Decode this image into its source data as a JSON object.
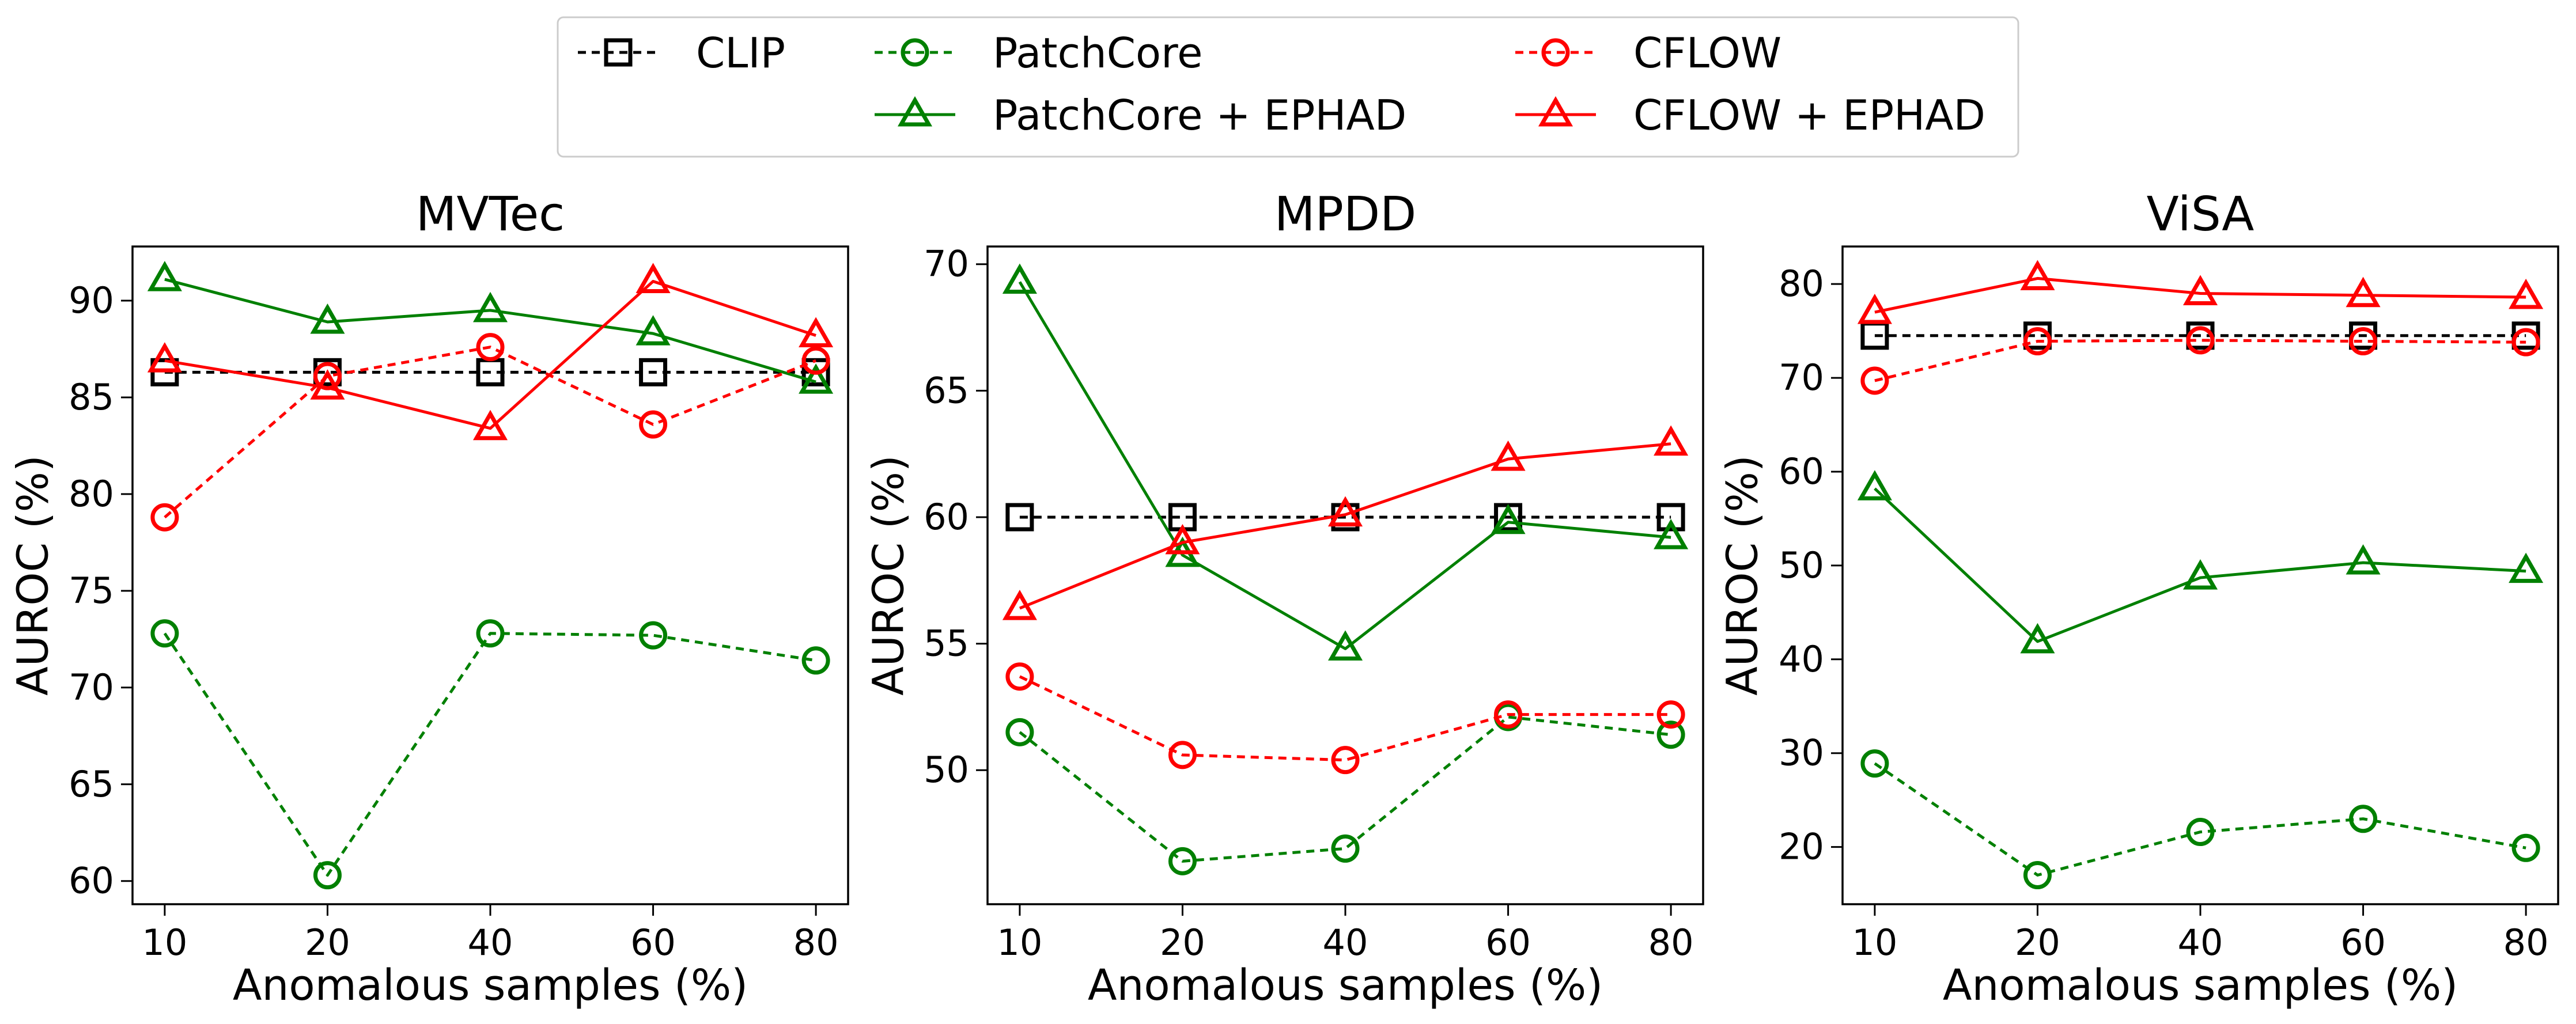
{
  "chart_data": {
    "type": "line",
    "x": [
      "10",
      "20",
      "40",
      "60",
      "80"
    ],
    "xlabel": "Anomalous samples (%)",
    "ylabel": "AUROC (%)",
    "series_styles": [
      {
        "name": "CLIP",
        "color": "#000000",
        "dashed": true,
        "marker": "square"
      },
      {
        "name": "PatchCore",
        "color": "#008000",
        "dashed": true,
        "marker": "circle"
      },
      {
        "name": "PatchCore + EPHAD",
        "color": "#008000",
        "dashed": false,
        "marker": "triangle"
      },
      {
        "name": "CFLOW",
        "color": "#ff0000",
        "dashed": true,
        "marker": "circle"
      },
      {
        "name": "CFLOW + EPHAD",
        "color": "#ff0000",
        "dashed": false,
        "marker": "triangle"
      }
    ],
    "legend": {
      "position": "top-center",
      "columns": [
        [
          "CLIP"
        ],
        [
          "PatchCore",
          "PatchCore + EPHAD"
        ],
        [
          "CFLOW",
          "CFLOW + EPHAD"
        ]
      ]
    },
    "panels": [
      {
        "title": "MVTec",
        "ylim": [
          58.8,
          92.8
        ],
        "yticks": [
          60,
          65,
          70,
          75,
          80,
          85,
          90
        ],
        "series": [
          {
            "name": "CLIP",
            "values": [
              86.3,
              86.3,
              86.3,
              86.3,
              86.3
            ]
          },
          {
            "name": "PatchCore",
            "values": [
              72.8,
              60.3,
              72.8,
              72.7,
              71.4
            ]
          },
          {
            "name": "PatchCore + EPHAD",
            "values": [
              91.1,
              88.9,
              89.5,
              88.3,
              85.8
            ]
          },
          {
            "name": "CFLOW",
            "values": [
              78.8,
              86.1,
              87.6,
              83.6,
              86.9
            ]
          },
          {
            "name": "CFLOW + EPHAD",
            "values": [
              86.9,
              85.5,
              83.4,
              91.0,
              88.2
            ]
          }
        ]
      },
      {
        "title": "MPDD",
        "ylim": [
          44.7,
          70.7
        ],
        "yticks": [
          50,
          55,
          60,
          65,
          70
        ],
        "series": [
          {
            "name": "CLIP",
            "values": [
              60.0,
              60.0,
              60.0,
              60.0,
              60.0
            ]
          },
          {
            "name": "PatchCore",
            "values": [
              51.5,
              46.4,
              46.9,
              52.1,
              51.4
            ]
          },
          {
            "name": "PatchCore + EPHAD",
            "values": [
              69.3,
              58.5,
              54.8,
              59.8,
              59.2
            ]
          },
          {
            "name": "CFLOW",
            "values": [
              53.7,
              50.6,
              50.4,
              52.2,
              52.2
            ]
          },
          {
            "name": "CFLOW + EPHAD",
            "values": [
              56.4,
              59.0,
              60.1,
              62.3,
              62.9
            ]
          }
        ]
      },
      {
        "title": "ViSA",
        "ylim": [
          13.9,
          84.0
        ],
        "yticks": [
          20,
          30,
          40,
          50,
          60,
          70,
          80
        ],
        "series": [
          {
            "name": "CLIP",
            "values": [
              74.5,
              74.5,
              74.5,
              74.5,
              74.5
            ]
          },
          {
            "name": "PatchCore",
            "values": [
              28.9,
              17.0,
              21.6,
              23.0,
              19.9
            ]
          },
          {
            "name": "PatchCore + EPHAD",
            "values": [
              58.2,
              41.9,
              48.7,
              50.3,
              49.4
            ]
          },
          {
            "name": "CFLOW",
            "values": [
              69.7,
              73.9,
              74.0,
              73.9,
              73.8
            ]
          },
          {
            "name": "CFLOW + EPHAD",
            "values": [
              77.0,
              80.6,
              79.0,
              78.8,
              78.6
            ]
          }
        ]
      }
    ]
  }
}
